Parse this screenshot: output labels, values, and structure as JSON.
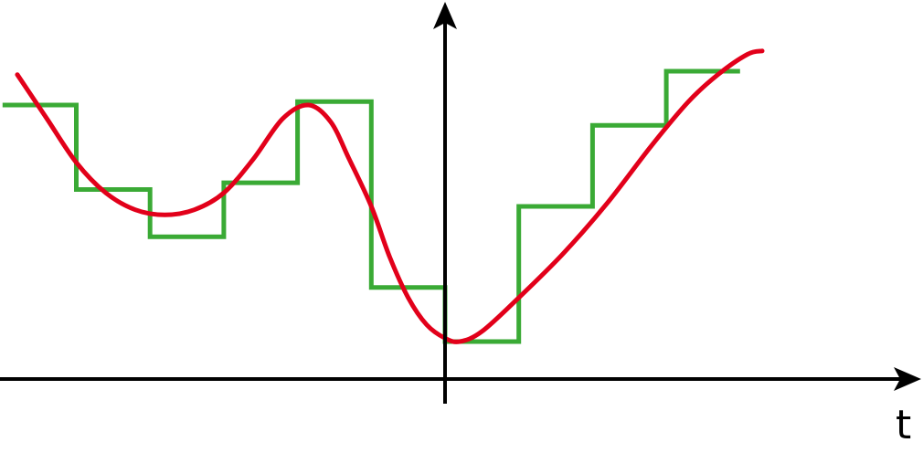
{
  "chart_data": {
    "type": "line",
    "xlabel": "t",
    "ylabel": "",
    "title": "",
    "grid": false,
    "legend": "none",
    "colors": {
      "axes": "#000000",
      "step_series": "#3aaa35",
      "curve_series": "#e2001a"
    },
    "series": [
      {
        "kind": "step",
        "color": "#3aaa35",
        "points": [
          [
            -6.0,
            8.0
          ],
          [
            -5.0,
            8.0
          ],
          [
            -5.0,
            5.5
          ],
          [
            -4.0,
            5.5
          ],
          [
            -4.0,
            4.1
          ],
          [
            -3.0,
            4.1
          ],
          [
            -3.0,
            5.7
          ],
          [
            -2.0,
            5.7
          ],
          [
            -2.0,
            8.1
          ],
          [
            -1.0,
            8.1
          ],
          [
            -1.0,
            2.6
          ],
          [
            0.0,
            2.6
          ],
          [
            0.0,
            1.0
          ],
          [
            1.0,
            1.0
          ],
          [
            1.0,
            5.0
          ],
          [
            2.0,
            5.0
          ],
          [
            2.0,
            7.4
          ],
          [
            3.0,
            7.4
          ],
          [
            3.0,
            9.0
          ],
          [
            4.0,
            9.0
          ]
        ]
      },
      {
        "kind": "smooth",
        "color": "#e2001a",
        "points": [
          [
            -5.8,
            8.9
          ],
          [
            -5.4,
            7.6
          ],
          [
            -5.0,
            6.3
          ],
          [
            -4.6,
            5.4
          ],
          [
            -4.2,
            4.9
          ],
          [
            -3.8,
            4.75
          ],
          [
            -3.4,
            4.9
          ],
          [
            -3.0,
            5.4
          ],
          [
            -2.6,
            6.4
          ],
          [
            -2.2,
            7.6
          ],
          [
            -1.85,
            8.0
          ],
          [
            -1.55,
            7.5
          ],
          [
            -1.3,
            6.4
          ],
          [
            -1.0,
            5.0
          ],
          [
            -0.75,
            3.5
          ],
          [
            -0.5,
            2.3
          ],
          [
            -0.25,
            1.5
          ],
          [
            0.0,
            1.1
          ],
          [
            0.2,
            1.0
          ],
          [
            0.5,
            1.3
          ],
          [
            1.0,
            2.3
          ],
          [
            1.6,
            3.6
          ],
          [
            2.2,
            5.1
          ],
          [
            2.8,
            6.8
          ],
          [
            3.3,
            8.1
          ],
          [
            3.7,
            8.9
          ],
          [
            4.1,
            9.5
          ],
          [
            4.3,
            9.6
          ]
        ]
      }
    ]
  }
}
